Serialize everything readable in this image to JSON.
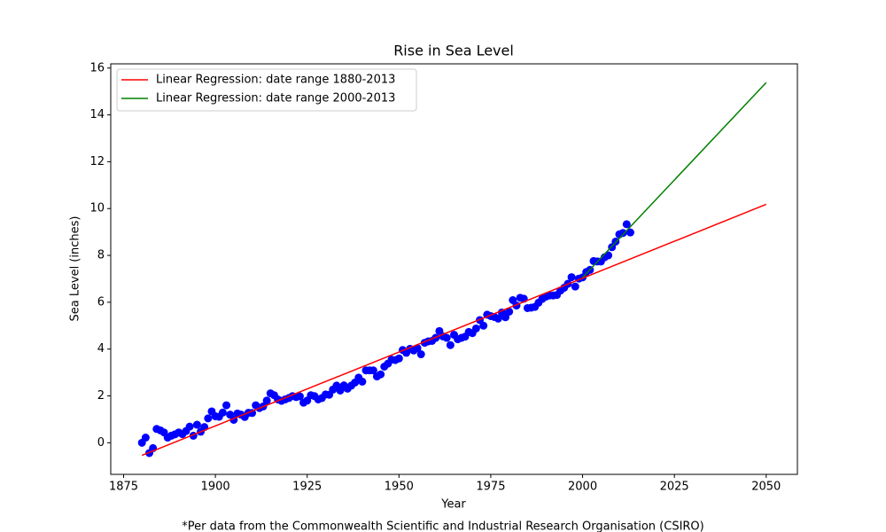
{
  "chart_data": {
    "type": "scatter",
    "title": "Rise in Sea Level",
    "xlabel": "Year",
    "ylabel": "Sea Level (inches)",
    "note": "*Per data from the Commonwealth Scientific and Industrial Research Organisation (CSIRO)",
    "xlim": [
      1871.5,
      2058.5
    ],
    "ylim": [
      -1.35,
      16.18
    ],
    "xticks": [
      1875,
      1900,
      1925,
      1950,
      1975,
      2000,
      2025,
      2050
    ],
    "yticks": [
      0,
      2,
      4,
      6,
      8,
      10,
      12,
      14,
      16
    ],
    "color": "#0000ff",
    "legend": "upper left",
    "x": [
      1880,
      1881,
      1882,
      1883,
      1884,
      1885,
      1886,
      1887,
      1888,
      1889,
      1890,
      1891,
      1892,
      1893,
      1894,
      1895,
      1896,
      1897,
      1898,
      1899,
      1900,
      1901,
      1902,
      1903,
      1904,
      1905,
      1906,
      1907,
      1908,
      1909,
      1910,
      1911,
      1912,
      1913,
      1914,
      1915,
      1916,
      1917,
      1918,
      1919,
      1920,
      1921,
      1922,
      1923,
      1924,
      1925,
      1926,
      1927,
      1928,
      1929,
      1930,
      1931,
      1932,
      1933,
      1934,
      1935,
      1936,
      1937,
      1938,
      1939,
      1940,
      1941,
      1942,
      1943,
      1944,
      1945,
      1946,
      1947,
      1948,
      1949,
      1950,
      1951,
      1952,
      1953,
      1954,
      1955,
      1956,
      1957,
      1958,
      1959,
      1960,
      1961,
      1962,
      1963,
      1964,
      1965,
      1966,
      1967,
      1968,
      1969,
      1970,
      1971,
      1972,
      1973,
      1974,
      1975,
      1976,
      1977,
      1978,
      1979,
      1980,
      1981,
      1982,
      1983,
      1984,
      1985,
      1986,
      1987,
      1988,
      1989,
      1990,
      1991,
      1992,
      1993,
      1994,
      1995,
      1996,
      1997,
      1998,
      1999,
      2000,
      2001,
      2002,
      2003,
      2004,
      2005,
      2006,
      2007,
      2008,
      2009,
      2010,
      2011,
      2012,
      2013
    ],
    "values": [
      0,
      0.22,
      -0.44,
      -0.23,
      0.59,
      0.53,
      0.44,
      0.22,
      0.3,
      0.36,
      0.44,
      0.37,
      0.5,
      0.69,
      0.3,
      0.77,
      0.47,
      0.67,
      1.04,
      1.34,
      1.13,
      1.11,
      1.29,
      1.6,
      1.2,
      0.98,
      1.25,
      1.2,
      1.1,
      1.28,
      1.27,
      1.6,
      1.48,
      1.55,
      1.8,
      2.11,
      2.03,
      1.85,
      1.79,
      1.85,
      1.91,
      1.99,
      1.95,
      1.98,
      1.71,
      1.8,
      2.03,
      1.99,
      1.85,
      1.91,
      2.06,
      2.05,
      2.27,
      2.44,
      2.23,
      2.45,
      2.31,
      2.44,
      2.57,
      2.78,
      2.61,
      3.09,
      3.09,
      3.09,
      2.83,
      2.92,
      3.25,
      3.38,
      3.55,
      3.53,
      3.6,
      3.96,
      3.84,
      4.01,
      3.94,
      4.04,
      3.78,
      4.27,
      4.33,
      4.35,
      4.48,
      4.77,
      4.54,
      4.48,
      4.17,
      4.61,
      4.42,
      4.48,
      4.53,
      4.73,
      4.68,
      4.88,
      5.24,
      5,
      5.47,
      5.41,
      5.37,
      5.3,
      5.56,
      5.36,
      5.6,
      6.09,
      5.86,
      6.19,
      6.15,
      5.75,
      5.77,
      5.8,
      5.98,
      6.14,
      6.24,
      6.29,
      6.29,
      6.31,
      6.5,
      6.62,
      6.79,
      7.07,
      6.67,
      7.01,
      7.06,
      7.29,
      7.38,
      7.76,
      7.74,
      7.74,
      7.92,
      8,
      8.35,
      8.59,
      8.9,
      8.96,
      9.33,
      8.98
    ],
    "lines": [
      {
        "name": "Linear Regression: date range 1880-2013",
        "color": "#ff0000",
        "x": [
          1880,
          2050
        ],
        "values": [
          -0.54,
          10.18
        ]
      },
      {
        "name": "Linear Regression: date range 2000-2013",
        "color": "#008000",
        "x": [
          2000,
          2050
        ],
        "values": [
          7.06,
          15.38
        ]
      }
    ]
  }
}
